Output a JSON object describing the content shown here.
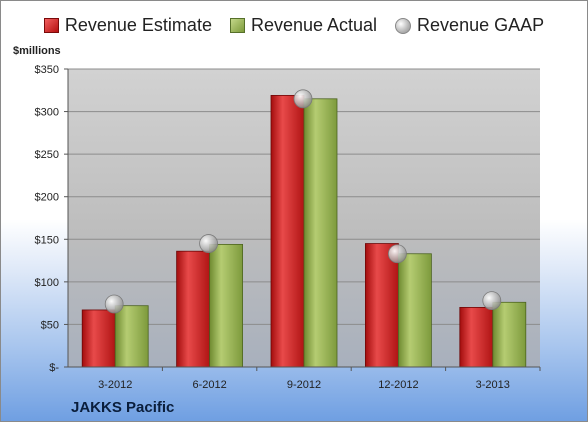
{
  "legend": {
    "estimate": "Revenue Estimate",
    "actual": "Revenue Actual",
    "gaap": "Revenue GAAP"
  },
  "unit_label": "$millions",
  "company": "JAKKS Pacific",
  "colors": {
    "estimate": "#c81e1e",
    "actual": "#8aa64a",
    "gaap": "#b0b0b0",
    "plot_bg": "#c8c8c8"
  },
  "chart_data": {
    "type": "bar",
    "categories": [
      "3-2012",
      "6-2012",
      "9-2012",
      "12-2012",
      "3-2013"
    ],
    "series": [
      {
        "name": "Revenue Estimate",
        "values": [
          67,
          136,
          319,
          145,
          70
        ]
      },
      {
        "name": "Revenue Actual",
        "values": [
          72,
          144,
          315,
          133,
          76
        ]
      },
      {
        "name": "Revenue GAAP",
        "values": [
          74,
          145,
          315,
          133,
          78
        ]
      }
    ],
    "ylabel": "$millions",
    "ylim": [
      0,
      350
    ],
    "yticks": [
      0,
      50,
      100,
      150,
      200,
      250,
      300,
      350
    ],
    "ytick_labels": [
      "$-",
      "$50",
      "$100",
      "$150",
      "$200",
      "$250",
      "$300",
      "$350"
    ],
    "grid": true,
    "legend": "top"
  }
}
